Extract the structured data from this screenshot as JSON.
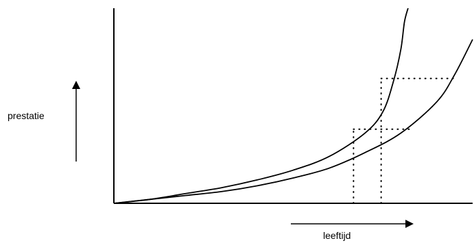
{
  "chart_data": {
    "type": "line",
    "xlabel": "leeftijd",
    "ylabel": "prestatie",
    "xlim": [
      0,
      10
    ],
    "ylim": [
      0,
      10
    ],
    "grid": false,
    "legend": "none",
    "x_ticks": [],
    "y_ticks": [],
    "series": [
      {
        "x": [
          0,
          1,
          2,
          3,
          4,
          5,
          6,
          7,
          7.5,
          7.8,
          8.0,
          8.1,
          8.2
        ],
        "y": [
          0.0,
          0.2,
          0.5,
          0.8,
          1.2,
          1.7,
          2.4,
          3.6,
          4.7,
          6.3,
          7.9,
          9.3,
          10.0
        ]
      },
      {
        "x": [
          0,
          1,
          2,
          3,
          4,
          5,
          6,
          7,
          8,
          9,
          9.5,
          10
        ],
        "y": [
          0.0,
          0.2,
          0.4,
          0.6,
          0.9,
          1.3,
          1.8,
          2.6,
          3.6,
          5.2,
          6.6,
          8.4
        ]
      }
    ],
    "annotations": [
      {
        "type": "dotted-guides",
        "x_values": [
          6.68,
          7.45
        ],
        "y_values": [
          3.8,
          6.4
        ]
      }
    ],
    "colors": {
      "axis": "#000000",
      "curves": "#000000",
      "guides": "#000000"
    }
  }
}
